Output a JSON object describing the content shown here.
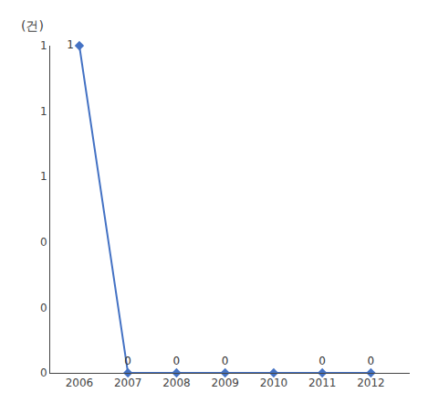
{
  "chart_data": {
    "type": "line",
    "ylabel": "(건)",
    "x": [
      2006,
      2007,
      2008,
      2009,
      2010,
      2011,
      2012
    ],
    "values": [
      1,
      0,
      0,
      0,
      0,
      0,
      0
    ],
    "value_labels": [
      "1",
      "0",
      "0",
      "0",
      null,
      "0",
      "0"
    ],
    "data_labels": true,
    "color": "#4472C4",
    "marker": "diamond",
    "xlim": [
      2005.4,
      2012.8
    ],
    "xticks": [
      2006,
      2007,
      2008,
      2009,
      2010,
      2011,
      2012
    ],
    "ylim": [
      0,
      1.0
    ],
    "yticks": [
      0,
      {
        "value": 0.2,
        "label": "0"
      },
      {
        "value": 0.4,
        "label": "0"
      },
      {
        "value": 0.6,
        "label": "1"
      },
      {
        "value": 0.8,
        "label": "1"
      },
      1
    ],
    "grid": false
  }
}
